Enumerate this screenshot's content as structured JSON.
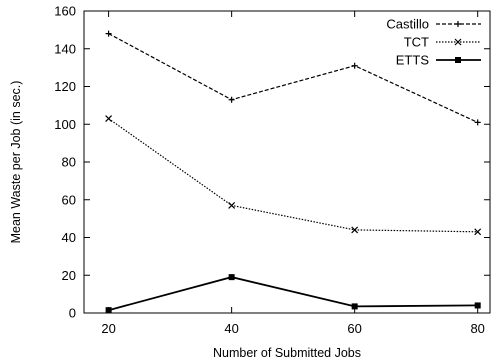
{
  "chart_data": {
    "type": "line",
    "title": "",
    "xlabel": "Number of Submitted Jobs",
    "ylabel": "Mean Waste per Job (in sec.)",
    "x": [
      20,
      40,
      60,
      80
    ],
    "xlim": [
      16,
      82
    ],
    "ylim": [
      0,
      160
    ],
    "xticks": [
      20,
      40,
      60,
      80
    ],
    "yticks": [
      0,
      20,
      40,
      60,
      80,
      100,
      120,
      140,
      160
    ],
    "grid": false,
    "legend_position": "top-right",
    "series": [
      {
        "name": "Castillo",
        "values": [
          148,
          113,
          131,
          101
        ],
        "line_style": "dashed",
        "marker": "plus"
      },
      {
        "name": "TCT",
        "values": [
          103,
          57,
          44,
          43
        ],
        "line_style": "dotted",
        "marker": "cross"
      },
      {
        "name": "ETTS",
        "values": [
          1.5,
          19,
          3.5,
          4
        ],
        "line_style": "solid",
        "marker": "square"
      }
    ]
  }
}
